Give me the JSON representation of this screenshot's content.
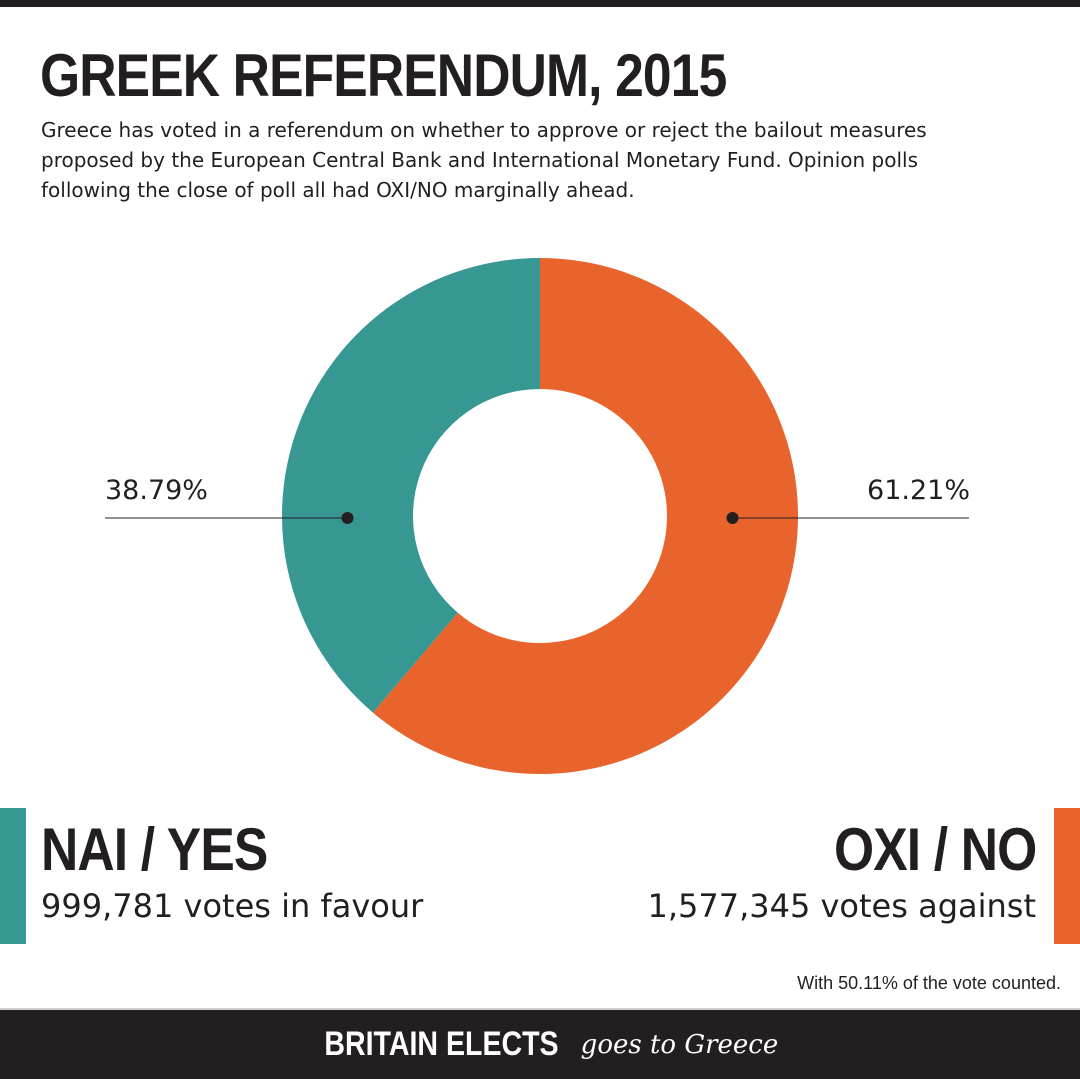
{
  "header": {
    "title": "GREEK REFERENDUM, 2015",
    "subtitle": "Greece has voted in a referendum on whether to approve or reject the bailout measures proposed by the European Central Bank and International Monetary Fund. Opinion polls following the close of poll all had OXI/NO marginally ahead."
  },
  "chart_data": {
    "type": "pie",
    "donut": true,
    "slices": [
      {
        "label": "OXI / NO",
        "value": 61.21,
        "display": "61.21%",
        "color": "#e9642c"
      },
      {
        "label": "NAI / YES",
        "value": 38.79,
        "display": "38.79%",
        "color": "#369793"
      }
    ]
  },
  "results": {
    "yes": {
      "label": "NAI / YES",
      "votes": "999,781 votes in favour",
      "color": "#369793"
    },
    "no": {
      "label": "OXI / NO",
      "votes": "1,577,345 votes against",
      "color": "#e9642c"
    }
  },
  "footnote": "With 50.11% of the vote counted.",
  "footer": {
    "brand": "BRITAIN ELECTS",
    "tagline": "goes to Greece"
  },
  "colors": {
    "dark": "#231f20",
    "teal": "#369793",
    "orange": "#e9642c"
  }
}
